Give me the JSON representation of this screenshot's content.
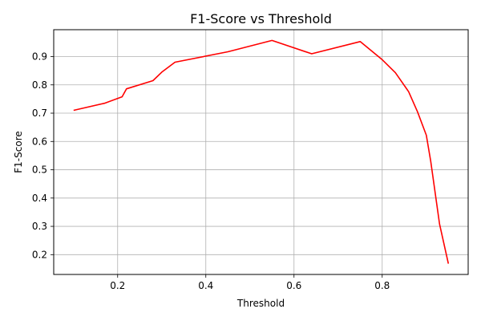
{
  "chart_data": {
    "type": "line",
    "title": "F1-Score vs Threshold",
    "xlabel": "Threshold",
    "ylabel": "F1-Score",
    "xlim": [
      0.055,
      0.995
    ],
    "ylim": [
      0.13,
      0.995
    ],
    "xticks": [
      0.2,
      0.4,
      0.6,
      0.8
    ],
    "xtick_labels": [
      "0.2",
      "0.4",
      "0.6",
      "0.8"
    ],
    "yticks": [
      0.2,
      0.3,
      0.4,
      0.5,
      0.6,
      0.7,
      0.8,
      0.9
    ],
    "ytick_labels": [
      "0.2",
      "0.3",
      "0.4",
      "0.5",
      "0.6",
      "0.7",
      "0.8",
      "0.9"
    ],
    "grid": true,
    "series": [
      {
        "color": "#ff0000",
        "x": [
          0.1,
          0.17,
          0.21,
          0.22,
          0.28,
          0.3,
          0.33,
          0.45,
          0.55,
          0.64,
          0.75,
          0.8,
          0.83,
          0.86,
          0.88,
          0.9,
          0.91,
          0.93,
          0.95
        ],
        "y": [
          0.71,
          0.735,
          0.758,
          0.786,
          0.815,
          0.845,
          0.88,
          0.917,
          0.957,
          0.91,
          0.953,
          0.889,
          0.843,
          0.776,
          0.705,
          0.622,
          0.53,
          0.308,
          0.168
        ]
      }
    ]
  }
}
